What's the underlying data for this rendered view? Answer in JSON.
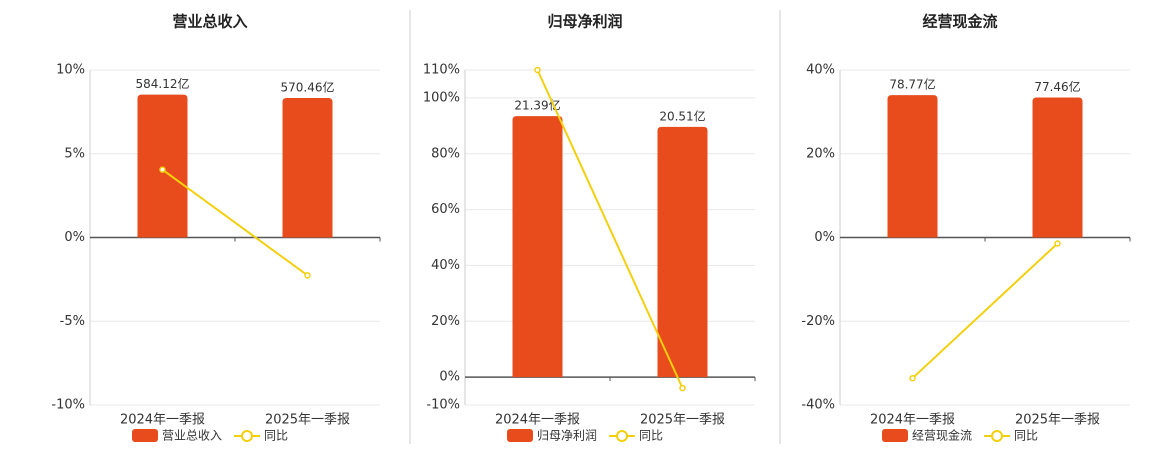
{
  "chart_data": [
    {
      "type": "bar-line",
      "title": "营业总收入",
      "categories": [
        "2024年一季报",
        "2025年一季报"
      ],
      "ylim": [
        -10,
        10
      ],
      "yticks": [
        {
          "value": -10,
          "label": "-10%"
        },
        {
          "value": -5,
          "label": "-5%"
        },
        {
          "value": 0,
          "label": "0%"
        },
        {
          "value": 5,
          "label": "5%"
        },
        {
          "value": 10,
          "label": "10%"
        }
      ],
      "y2lim": [
        -685,
        685
      ],
      "series": [
        {
          "name": "营业总收入",
          "type": "bar",
          "axis": "y2",
          "color": "#e84c1c",
          "values": [
            584.12,
            570.46
          ],
          "value_labels": [
            "584.12亿",
            "570.46亿"
          ]
        },
        {
          "name": "同比",
          "type": "line",
          "color": "#f2d00f",
          "values": [
            4.05,
            -2.26
          ]
        }
      ]
    },
    {
      "type": "bar-line",
      "title": "归母净利润",
      "categories": [
        "2024年一季报",
        "2025年一季报"
      ],
      "ylim": [
        -10,
        110
      ],
      "yticks": [
        {
          "value": -10,
          "label": "-10%"
        },
        {
          "value": 0,
          "label": "0%"
        },
        {
          "value": 20,
          "label": "20%"
        },
        {
          "value": 40,
          "label": "40%"
        },
        {
          "value": 60,
          "label": "60%"
        },
        {
          "value": 80,
          "label": "80%"
        },
        {
          "value": 100,
          "label": "100%"
        },
        {
          "value": 110,
          "label": "110%"
        }
      ],
      "y2lim": [
        -2.29,
        25.17
      ],
      "series": [
        {
          "name": "归母净利润",
          "type": "bar",
          "axis": "y2",
          "color": "#e84c1c",
          "values": [
            21.39,
            20.51
          ],
          "value_labels": [
            "21.39亿",
            "20.51亿"
          ]
        },
        {
          "name": "同比",
          "type": "line",
          "color": "#f2d00f",
          "values": [
            110,
            -3.94
          ]
        }
      ]
    },
    {
      "type": "bar-line",
      "title": "经营现金流",
      "categories": [
        "2024年一季报",
        "2025年一季报"
      ],
      "ylim": [
        -40,
        40
      ],
      "yticks": [
        {
          "value": -40,
          "label": "-40%"
        },
        {
          "value": -20,
          "label": "-20%"
        },
        {
          "value": 0,
          "label": "0%"
        },
        {
          "value": 20,
          "label": "20%"
        },
        {
          "value": 40,
          "label": "40%"
        }
      ],
      "y2lim": [
        -92.7,
        92.7
      ],
      "series": [
        {
          "name": "经营现金流",
          "type": "bar",
          "axis": "y2",
          "color": "#e84c1c",
          "values": [
            78.77,
            77.46
          ],
          "value_labels": [
            "78.77亿",
            "77.46亿"
          ]
        },
        {
          "name": "同比",
          "type": "line",
          "color": "#f2d00f",
          "values": [
            -33.6,
            -1.43
          ]
        }
      ]
    }
  ]
}
